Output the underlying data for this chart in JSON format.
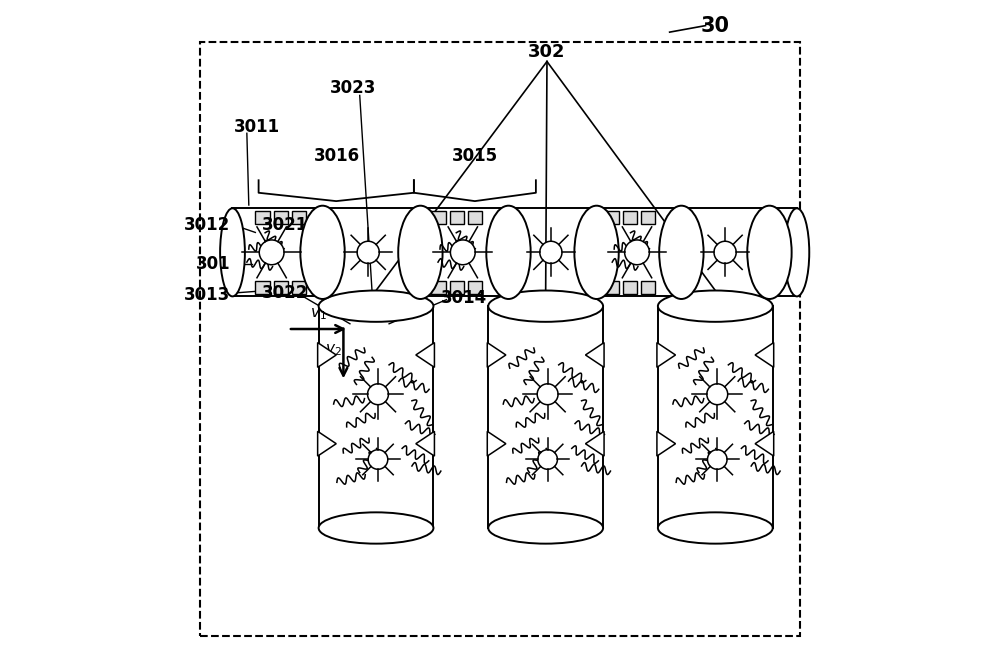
{
  "background_color": "#ffffff",
  "figure_label": "30",
  "label_302": "302",
  "label_301": "301",
  "label_3011": "3011",
  "label_3012": "3012",
  "label_3013": "3013",
  "label_3014": "3014",
  "label_3015": "3015",
  "label_3016": "3016",
  "label_3021": "3021",
  "label_3022": "3022",
  "label_3023": "3023",
  "label_v1": "$v_1$",
  "label_v2": "$v_2$",
  "font_size_label": 12
}
